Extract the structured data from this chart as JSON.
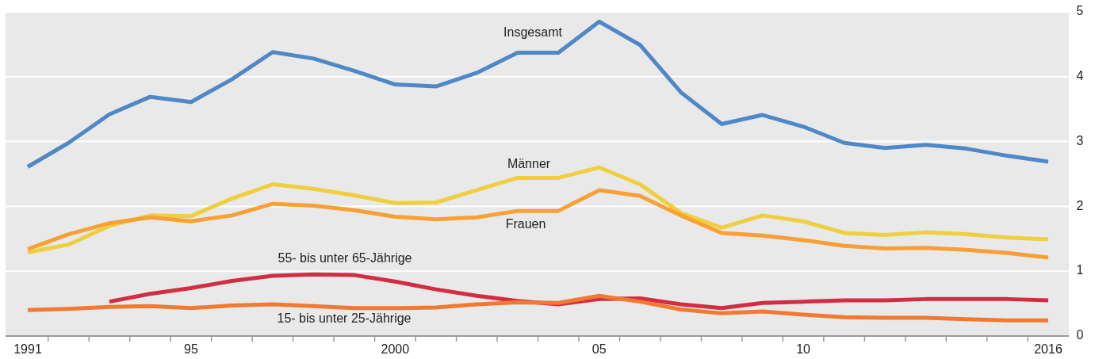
{
  "chart_data": {
    "type": "line",
    "categories": [
      "1991",
      null,
      null,
      null,
      "95",
      null,
      null,
      null,
      null,
      "2000",
      null,
      null,
      null,
      null,
      "05",
      null,
      null,
      null,
      null,
      "10",
      null,
      null,
      null,
      null,
      null,
      "2016"
    ],
    "series": [
      {
        "name": "Insgesamt",
        "color": "#4f88c6",
        "values": [
          2.61,
          2.98,
          3.42,
          3.69,
          3.61,
          3.96,
          4.38,
          4.28,
          4.09,
          3.88,
          3.85,
          4.06,
          4.37,
          4.37,
          4.85,
          4.49,
          3.76,
          3.27,
          3.41,
          3.23,
          2.98,
          2.9,
          2.95,
          2.89,
          2.78,
          2.69
        ]
      },
      {
        "name": "Männer",
        "color": "#efcf3f",
        "values": [
          1.29,
          1.41,
          1.7,
          1.86,
          1.85,
          2.12,
          2.34,
          2.27,
          2.17,
          2.05,
          2.06,
          2.25,
          2.44,
          2.44,
          2.6,
          2.34,
          1.9,
          1.67,
          1.86,
          1.77,
          1.59,
          1.56,
          1.6,
          1.57,
          1.52,
          1.49
        ]
      },
      {
        "name": "Frauen",
        "color": "#f7a035",
        "values": [
          1.34,
          1.57,
          1.74,
          1.83,
          1.77,
          1.86,
          2.04,
          2.01,
          1.94,
          1.84,
          1.8,
          1.83,
          1.93,
          1.93,
          2.25,
          2.16,
          1.86,
          1.59,
          1.55,
          1.48,
          1.39,
          1.35,
          1.36,
          1.33,
          1.28,
          1.21
        ]
      },
      {
        "name": "55- bis unter 65-Jährige",
        "color": "#d22d43",
        "values": [
          null,
          null,
          0.53,
          0.65,
          0.74,
          0.85,
          0.93,
          0.95,
          0.94,
          0.84,
          0.72,
          0.62,
          0.54,
          0.49,
          0.57,
          0.58,
          0.49,
          0.43,
          0.51,
          0.53,
          0.55,
          0.55,
          0.57,
          0.57,
          0.57,
          0.55
        ]
      },
      {
        "name": "15- bis unter 25-Jährige",
        "color": "#f07a31",
        "values": [
          0.4,
          0.42,
          0.45,
          0.46,
          0.43,
          0.47,
          0.49,
          0.46,
          0.43,
          0.43,
          0.44,
          0.49,
          0.52,
          0.51,
          0.62,
          0.53,
          0.41,
          0.35,
          0.38,
          0.33,
          0.29,
          0.28,
          0.28,
          0.26,
          0.24,
          0.24
        ]
      }
    ],
    "ylim": [
      0,
      5
    ],
    "yticks": [
      0,
      1,
      2,
      3,
      4,
      5
    ],
    "grid": "y"
  }
}
